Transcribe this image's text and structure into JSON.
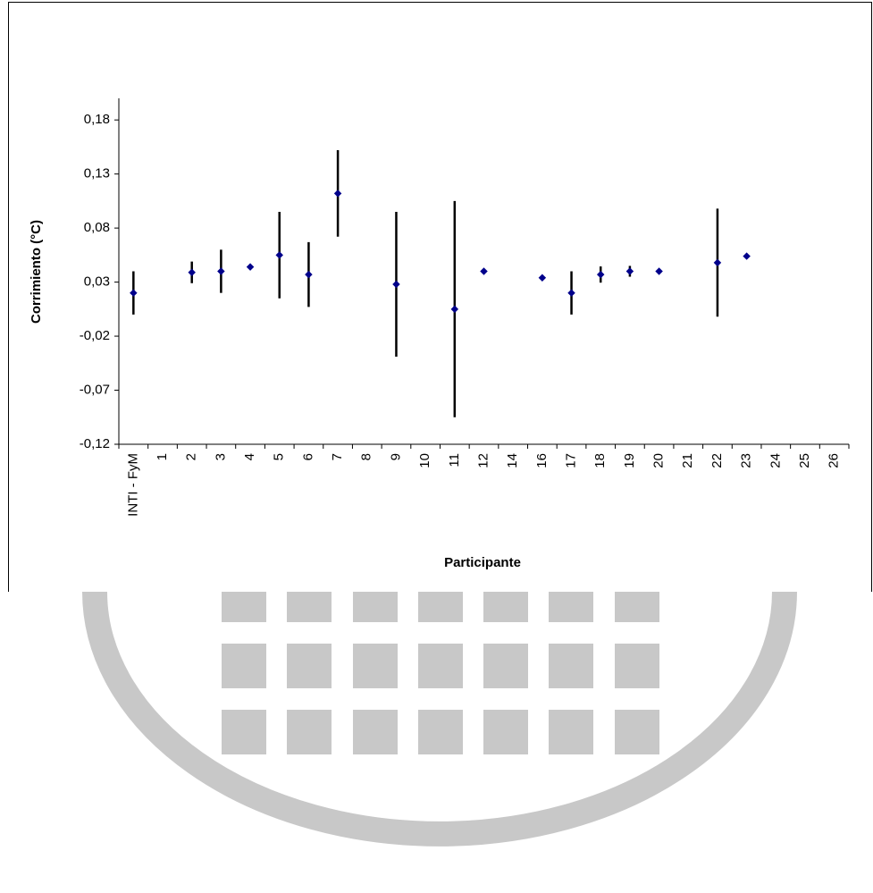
{
  "chart_data": {
    "type": "errorbar",
    "y_label": "Corrimiento (°C)",
    "x_label": "Participante",
    "categories": [
      "INTI - FyM",
      "1",
      "2",
      "3",
      "4",
      "5",
      "6",
      "7",
      "8",
      "9",
      "10",
      "11",
      "12",
      "14",
      "16",
      "17",
      "18",
      "19",
      "20",
      "21",
      "22",
      "23",
      "24",
      "25",
      "26"
    ],
    "series": [
      {
        "color": "#00008b",
        "values": [
          0.02,
          null,
          0.039,
          0.04,
          0.044,
          0.055,
          0.037,
          0.112,
          null,
          0.028,
          null,
          0.005,
          0.04,
          null,
          0.034,
          0.02,
          0.037,
          0.04,
          0.04,
          null,
          0.048,
          0.054,
          null,
          null,
          null
        ],
        "errors": [
          0.02,
          null,
          0.01,
          0.02,
          0,
          0.04,
          0.03,
          0.04,
          null,
          0.067,
          null,
          0.1,
          0,
          null,
          0,
          0.02,
          0.0075,
          0.005,
          0,
          null,
          0.05,
          0,
          null,
          null,
          null
        ]
      }
    ],
    "ylim": [
      -0.12,
      0.2
    ],
    "yticks": [
      {
        "value": -0.12,
        "label": "-0,12"
      },
      {
        "value": -0.07,
        "label": "-0,07"
      },
      {
        "value": -0.02,
        "label": "-0,02"
      },
      {
        "value": 0.03,
        "label": "0,03"
      },
      {
        "value": 0.08,
        "label": "0,08"
      },
      {
        "value": 0.13,
        "label": "0,13"
      },
      {
        "value": 0.18,
        "label": "0,18"
      }
    ],
    "error_bar_color": "#000000",
    "grid": false
  }
}
